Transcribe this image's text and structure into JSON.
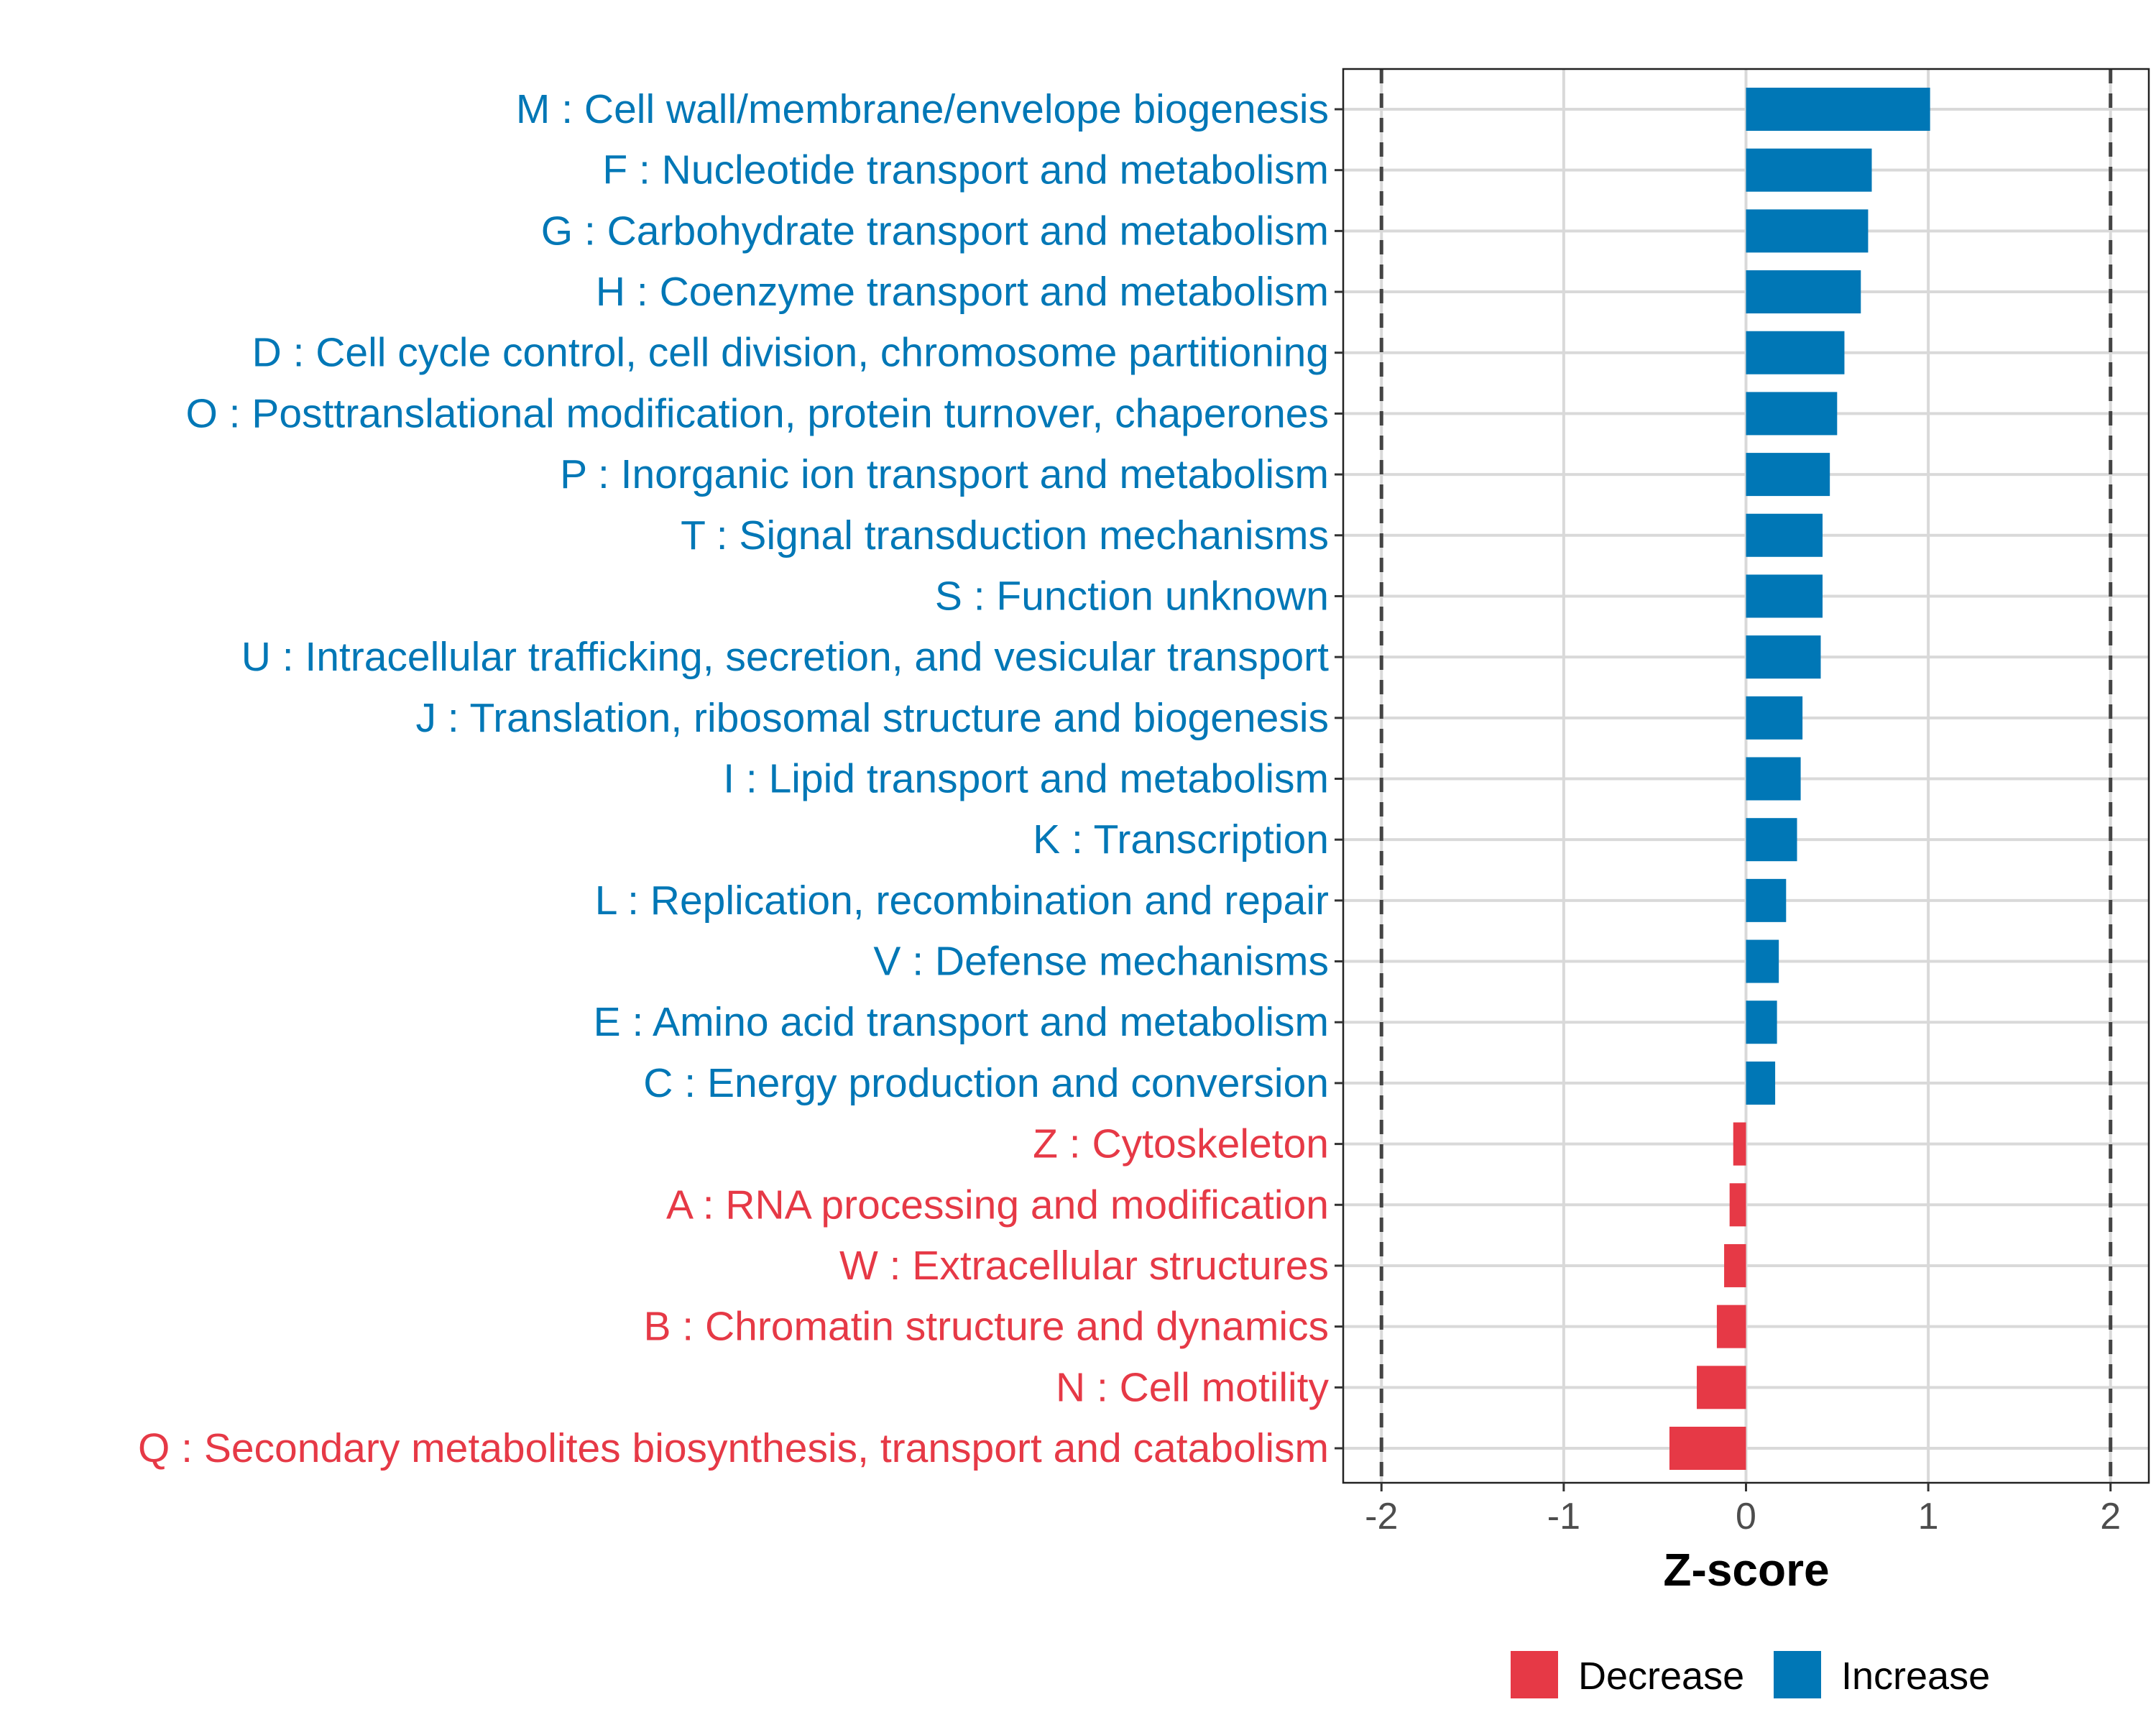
{
  "chart_data": {
    "type": "bar",
    "orientation": "horizontal",
    "title": "",
    "xlabel": "Z-score",
    "ylabel": "",
    "xlim": [
      -2.21,
      2.21
    ],
    "xticks": [
      -2,
      -1,
      0,
      1,
      2
    ],
    "xtick_labels": [
      "-2",
      "-1",
      "0",
      "1",
      "2"
    ],
    "reference_lines": [
      -2,
      2
    ],
    "grid": true,
    "legend_position": "bottom",
    "legend": [
      {
        "name": "Decrease",
        "color": "#E63946"
      },
      {
        "name": "Increase",
        "color": "#0077B6"
      }
    ],
    "categories": [
      "M : Cell wall/membrane/envelope biogenesis",
      "F : Nucleotide transport and metabolism",
      "G : Carbohydrate transport and metabolism",
      "H : Coenzyme transport and metabolism",
      "D : Cell cycle control, cell division, chromosome partitioning",
      "O : Posttranslational modification, protein turnover, chaperones",
      "P : Inorganic ion transport and metabolism",
      "T : Signal transduction mechanisms",
      "S : Function unknown",
      "U : Intracellular trafficking, secretion, and vesicular transport",
      "J : Translation, ribosomal structure and biogenesis",
      "I : Lipid transport and metabolism",
      "K : Transcription",
      "L : Replication, recombination and repair",
      "V : Defense mechanisms",
      "E : Amino acid transport and metabolism",
      "C : Energy production and conversion",
      "Z : Cytoskeleton",
      "A : RNA processing and modification",
      "W : Extracellular structures",
      "B : Chromatin structure and dynamics",
      "N : Cell motility",
      "Q : Secondary metabolites biosynthesis, transport and catabolism"
    ],
    "values": [
      1.01,
      0.69,
      0.67,
      0.63,
      0.54,
      0.5,
      0.46,
      0.42,
      0.42,
      0.41,
      0.31,
      0.3,
      0.28,
      0.22,
      0.18,
      0.17,
      0.16,
      -0.07,
      -0.09,
      -0.12,
      -0.16,
      -0.27,
      -0.42
    ]
  }
}
